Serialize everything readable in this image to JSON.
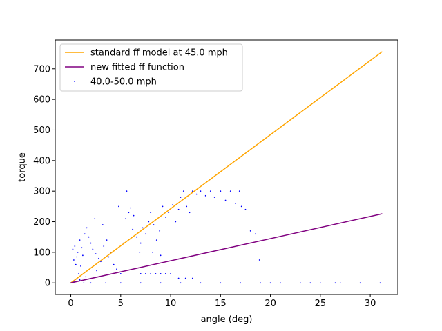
{
  "chart_data": {
    "type": "scatter",
    "xlabel": "angle (deg)",
    "ylabel": "torque",
    "xlim": [
      -1.56,
      32.76
    ],
    "ylim": [
      -37.8,
      794.2
    ],
    "x_ticks": [
      0,
      5,
      10,
      15,
      20,
      25,
      30
    ],
    "y_ticks": [
      0,
      100,
      200,
      300,
      400,
      500,
      600,
      700
    ],
    "grid": false,
    "legend_position": "top-left",
    "series": [
      {
        "name": "standard ff model at 45.0 mph",
        "kind": "line",
        "color": "#ffa500",
        "x": [
          0,
          31.2
        ],
        "y": [
          0,
          756
        ]
      },
      {
        "name": "new fitted ff function",
        "kind": "line",
        "color": "#800080",
        "x": [
          0,
          31.2
        ],
        "y": [
          0,
          226
        ]
      },
      {
        "name": "40.0-50.0 mph",
        "kind": "scatter",
        "color": "#0000ff",
        "points": [
          [
            0.0,
            0
          ],
          [
            0.3,
            5
          ],
          [
            0.5,
            12
          ],
          [
            0.8,
            30
          ],
          [
            1.0,
            55
          ],
          [
            1.2,
            90
          ],
          [
            0.2,
            110
          ],
          [
            0.4,
            120
          ],
          [
            0.6,
            85
          ],
          [
            0.9,
            140
          ],
          [
            1.4,
            160
          ],
          [
            1.6,
            180
          ],
          [
            1.1,
            115
          ],
          [
            0.7,
            100
          ],
          [
            0.3,
            75
          ],
          [
            0.5,
            60
          ],
          [
            1.8,
            150
          ],
          [
            2.0,
            130
          ],
          [
            2.2,
            110
          ],
          [
            2.5,
            95
          ],
          [
            2.8,
            80
          ],
          [
            3.0,
            70
          ],
          [
            3.3,
            120
          ],
          [
            3.6,
            140
          ],
          [
            4.0,
            100
          ],
          [
            4.3,
            60
          ],
          [
            4.6,
            45
          ],
          [
            5.0,
            30
          ],
          [
            5.3,
            130
          ],
          [
            5.6,
            300
          ],
          [
            5.8,
            230
          ],
          [
            6.0,
            245
          ],
          [
            6.3,
            220
          ],
          [
            6.6,
            150
          ],
          [
            6.9,
            100
          ],
          [
            7.2,
            180
          ],
          [
            7.5,
            160
          ],
          [
            7.8,
            200
          ],
          [
            8.0,
            230
          ],
          [
            8.3,
            190
          ],
          [
            8.6,
            140
          ],
          [
            8.9,
            170
          ],
          [
            9.2,
            250
          ],
          [
            9.5,
            215
          ],
          [
            9.8,
            230
          ],
          [
            10.2,
            255
          ],
          [
            10.5,
            200
          ],
          [
            10.8,
            240
          ],
          [
            11.0,
            280
          ],
          [
            11.3,
            300
          ],
          [
            11.6,
            250
          ],
          [
            11.9,
            230
          ],
          [
            12.2,
            300
          ],
          [
            12.6,
            290
          ],
          [
            13.0,
            300
          ],
          [
            13.5,
            285
          ],
          [
            14.0,
            300
          ],
          [
            14.4,
            280
          ],
          [
            15.0,
            300
          ],
          [
            15.5,
            270
          ],
          [
            16.0,
            300
          ],
          [
            16.5,
            260
          ],
          [
            16.9,
            300
          ],
          [
            17.1,
            250
          ],
          [
            17.5,
            240
          ],
          [
            18.0,
            170
          ],
          [
            18.5,
            160
          ],
          [
            18.9,
            75
          ],
          [
            2.4,
            210
          ],
          [
            3.2,
            190
          ],
          [
            4.8,
            250
          ],
          [
            5.5,
            210
          ],
          [
            7.0,
            130
          ],
          [
            8.2,
            100
          ],
          [
            6.2,
            175
          ],
          [
            9.0,
            90
          ],
          [
            3.8,
            85
          ],
          [
            2.6,
            40
          ],
          [
            1.5,
            20
          ],
          [
            0.9,
            10
          ],
          [
            7.0,
            30
          ],
          [
            7.5,
            30
          ],
          [
            8.0,
            30
          ],
          [
            8.5,
            30
          ],
          [
            9.0,
            30
          ],
          [
            9.5,
            30
          ],
          [
            10.0,
            30
          ],
          [
            10.8,
            15
          ],
          [
            11.5,
            15
          ],
          [
            12.2,
            15
          ],
          [
            1.3,
            0
          ],
          [
            2.0,
            0
          ],
          [
            3.5,
            0
          ],
          [
            5.0,
            0
          ],
          [
            7.0,
            0
          ],
          [
            9.0,
            0
          ],
          [
            11.0,
            0
          ],
          [
            13.0,
            0
          ],
          [
            15.0,
            0
          ],
          [
            17.0,
            0
          ],
          [
            19.0,
            0
          ],
          [
            21.0,
            0
          ],
          [
            23.0,
            0
          ],
          [
            25.0,
            0
          ],
          [
            27.0,
            0
          ],
          [
            29.0,
            0
          ],
          [
            31.0,
            0
          ],
          [
            26.5,
            0
          ],
          [
            24.0,
            0
          ],
          [
            20.0,
            0
          ]
        ]
      }
    ]
  }
}
